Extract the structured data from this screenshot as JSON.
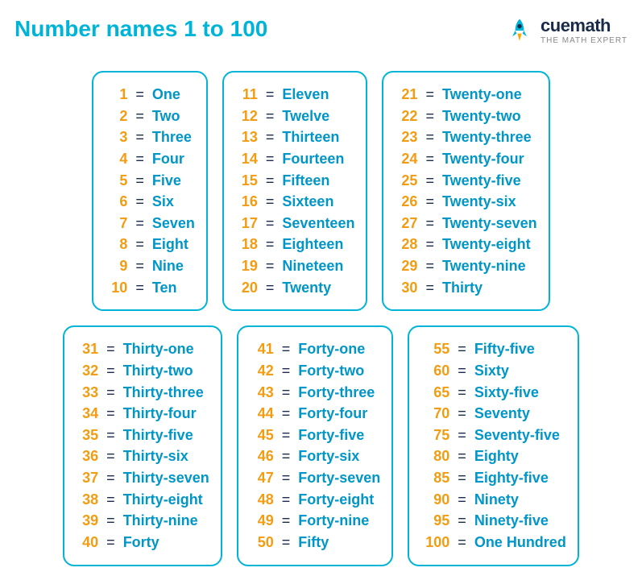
{
  "title": "Number names 1 to 100",
  "logo": {
    "name": "cuemath",
    "tagline": "THE MATH EXPERT"
  },
  "colors": {
    "accent": "#00b4d8",
    "number": "#f39c12",
    "word": "#0096c7",
    "dark": "#1a2b4a",
    "rocket_body": "#00b4d8",
    "rocket_flame": "#ffa500"
  },
  "typography": {
    "title_fontsize": 28,
    "entry_fontsize": 18,
    "font_weight": 600
  },
  "layout": {
    "box_border_radius": 14,
    "box_border_width": 2,
    "rows": 2,
    "cols": 3
  },
  "boxes": [
    [
      {
        "n": "1",
        "w": "One"
      },
      {
        "n": "2",
        "w": "Two"
      },
      {
        "n": "3",
        "w": "Three"
      },
      {
        "n": "4",
        "w": "Four"
      },
      {
        "n": "5",
        "w": "Five"
      },
      {
        "n": "6",
        "w": "Six"
      },
      {
        "n": "7",
        "w": "Seven"
      },
      {
        "n": "8",
        "w": "Eight"
      },
      {
        "n": "9",
        "w": "Nine"
      },
      {
        "n": "10",
        "w": "Ten"
      }
    ],
    [
      {
        "n": "11",
        "w": "Eleven"
      },
      {
        "n": "12",
        "w": "Twelve"
      },
      {
        "n": "13",
        "w": "Thirteen"
      },
      {
        "n": "14",
        "w": "Fourteen"
      },
      {
        "n": "15",
        "w": "Fifteen"
      },
      {
        "n": "16",
        "w": "Sixteen"
      },
      {
        "n": "17",
        "w": "Seventeen"
      },
      {
        "n": "18",
        "w": "Eighteen"
      },
      {
        "n": "19",
        "w": "Nineteen"
      },
      {
        "n": "20",
        "w": "Twenty"
      }
    ],
    [
      {
        "n": "21",
        "w": "Twenty-one"
      },
      {
        "n": "22",
        "w": "Twenty-two"
      },
      {
        "n": "23",
        "w": "Twenty-three"
      },
      {
        "n": "24",
        "w": "Twenty-four"
      },
      {
        "n": "25",
        "w": "Twenty-five"
      },
      {
        "n": "26",
        "w": "Twenty-six"
      },
      {
        "n": "27",
        "w": "Twenty-seven"
      },
      {
        "n": "28",
        "w": "Twenty-eight"
      },
      {
        "n": "29",
        "w": "Twenty-nine"
      },
      {
        "n": "30",
        "w": "Thirty"
      }
    ],
    [
      {
        "n": "31",
        "w": "Thirty-one"
      },
      {
        "n": "32",
        "w": "Thirty-two"
      },
      {
        "n": "33",
        "w": "Thirty-three"
      },
      {
        "n": "34",
        "w": "Thirty-four"
      },
      {
        "n": "35",
        "w": "Thirty-five"
      },
      {
        "n": "36",
        "w": "Thirty-six"
      },
      {
        "n": "37",
        "w": "Thirty-seven"
      },
      {
        "n": "38",
        "w": "Thirty-eight"
      },
      {
        "n": "39",
        "w": "Thirty-nine"
      },
      {
        "n": "40",
        "w": "Forty"
      }
    ],
    [
      {
        "n": "41",
        "w": "Forty-one"
      },
      {
        "n": "42",
        "w": "Forty-two"
      },
      {
        "n": "43",
        "w": "Forty-three"
      },
      {
        "n": "44",
        "w": "Forty-four"
      },
      {
        "n": "45",
        "w": "Forty-five"
      },
      {
        "n": "46",
        "w": "Forty-six"
      },
      {
        "n": "47",
        "w": "Forty-seven"
      },
      {
        "n": "48",
        "w": "Forty-eight"
      },
      {
        "n": "49",
        "w": "Forty-nine"
      },
      {
        "n": "50",
        "w": "Fifty"
      }
    ],
    [
      {
        "n": "55",
        "w": "Fifty-five"
      },
      {
        "n": "60",
        "w": "Sixty"
      },
      {
        "n": "65",
        "w": "Sixty-five"
      },
      {
        "n": "70",
        "w": "Seventy"
      },
      {
        "n": "75",
        "w": "Seventy-five"
      },
      {
        "n": "80",
        "w": "Eighty"
      },
      {
        "n": "85",
        "w": "Eighty-five"
      },
      {
        "n": "90",
        "w": "Ninety"
      },
      {
        "n": "95",
        "w": "Ninety-five"
      },
      {
        "n": "100",
        "w": "One Hundred"
      }
    ]
  ],
  "eq_symbol": "="
}
